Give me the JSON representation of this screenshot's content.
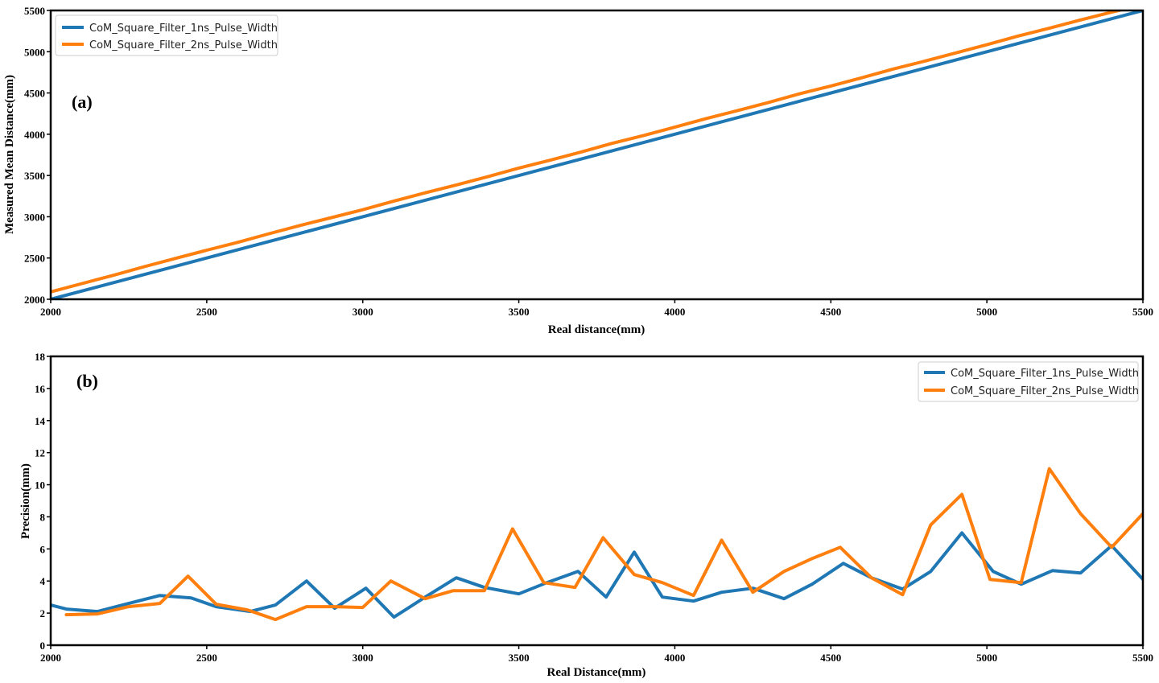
{
  "colors": {
    "series1": "#1f77b4",
    "series2": "#ff7f0e"
  },
  "chart_data": [
    {
      "type": "line",
      "panel_label": "(a)",
      "xlabel": "Real distance(mm)",
      "ylabel": "Measured Mean Distance(mm)",
      "xlim": [
        2000,
        5500
      ],
      "ylim": [
        2000,
        5500
      ],
      "xticks": [
        "2000",
        "2500",
        "3000",
        "3500",
        "4000",
        "4500",
        "5000",
        "5500"
      ],
      "yticks": [
        "2000",
        "2500",
        "3000",
        "3500",
        "4000",
        "4500",
        "5000",
        "5500"
      ],
      "grid": false,
      "legend_position": "top-left",
      "series": [
        {
          "name": "CoM_Square_Filter_1ns_Pulse_Width",
          "x": [
            2000,
            5500
          ],
          "y": [
            2000,
            5500
          ]
        },
        {
          "name": "CoM_Square_Filter_2ns_Pulse_Width",
          "x": [
            2000,
            2100,
            2200,
            2300,
            2400,
            2500,
            2600,
            2700,
            2800,
            2900,
            3000,
            3100,
            3200,
            3300,
            3400,
            3500,
            3600,
            3700,
            3800,
            3900,
            4000,
            4100,
            4200,
            4300,
            4400,
            4500,
            4600,
            4700,
            4800,
            4900,
            5000,
            5100,
            5200,
            5300,
            5400,
            5500
          ],
          "y": [
            2090,
            2190,
            2290,
            2395,
            2495,
            2595,
            2690,
            2795,
            2895,
            2990,
            3085,
            3190,
            3290,
            3385,
            3485,
            3590,
            3685,
            3785,
            3890,
            3985,
            4085,
            4190,
            4285,
            4385,
            4490,
            4585,
            4685,
            4790,
            4885,
            4985,
            5085,
            5190,
            5285,
            5385,
            5480,
            5570
          ]
        }
      ]
    },
    {
      "type": "line",
      "panel_label": "(b)",
      "xlabel": "Real Distance(mm)",
      "ylabel": "Precision(mm)",
      "xlim": [
        2000,
        5500
      ],
      "ylim": [
        0,
        18
      ],
      "xticks": [
        "2000",
        "2500",
        "3000",
        "3500",
        "4000",
        "4500",
        "5000",
        "5500"
      ],
      "yticks": [
        "0",
        "2",
        "4",
        "6",
        "8",
        "10",
        "12",
        "14",
        "16",
        "18"
      ],
      "grid": false,
      "legend_position": "top-right",
      "series": [
        {
          "name": "CoM_Square_Filter_1ns_Pulse_Width",
          "x": [
            2000,
            2050,
            2150,
            2250,
            2350,
            2450,
            2530,
            2640,
            2720,
            2820,
            2910,
            3010,
            3100,
            3200,
            3300,
            3390,
            3500,
            3590,
            3690,
            3780,
            3870,
            3960,
            4060,
            4150,
            4250,
            4350,
            4440,
            4540,
            4630,
            4730,
            4820,
            4920,
            5020,
            5110,
            5210,
            5300,
            5400,
            5500
          ],
          "y": [
            2.5,
            2.25,
            2.1,
            2.6,
            3.1,
            2.95,
            2.4,
            2.1,
            2.5,
            4.0,
            2.3,
            3.55,
            1.75,
            3.0,
            4.2,
            3.6,
            3.2,
            3.9,
            4.6,
            3.0,
            5.8,
            3.0,
            2.75,
            3.3,
            3.55,
            2.9,
            3.8,
            5.1,
            4.2,
            3.5,
            4.6,
            7.0,
            4.6,
            3.8,
            4.65,
            4.5,
            6.2,
            4.1
          ]
        },
        {
          "name": "CoM_Square_Filter_2ns_Pulse_Width",
          "x": [
            2050,
            2150,
            2250,
            2350,
            2440,
            2530,
            2630,
            2720,
            2820,
            2910,
            3000,
            3090,
            3200,
            3290,
            3390,
            3480,
            3580,
            3680,
            3770,
            3870,
            3960,
            4060,
            4150,
            4250,
            4350,
            4440,
            4530,
            4630,
            4730,
            4820,
            4920,
            5010,
            5110,
            5200,
            5300,
            5400,
            5500
          ],
          "y": [
            1.9,
            1.95,
            2.4,
            2.6,
            4.3,
            2.55,
            2.2,
            1.6,
            2.4,
            2.4,
            2.35,
            4.0,
            2.9,
            3.4,
            3.4,
            7.25,
            3.9,
            3.6,
            6.7,
            4.4,
            3.9,
            3.1,
            6.55,
            3.3,
            4.6,
            5.4,
            6.1,
            4.2,
            3.15,
            7.5,
            9.4,
            4.1,
            3.9,
            11.0,
            8.2,
            6.1,
            8.2
          ]
        }
      ]
    }
  ]
}
